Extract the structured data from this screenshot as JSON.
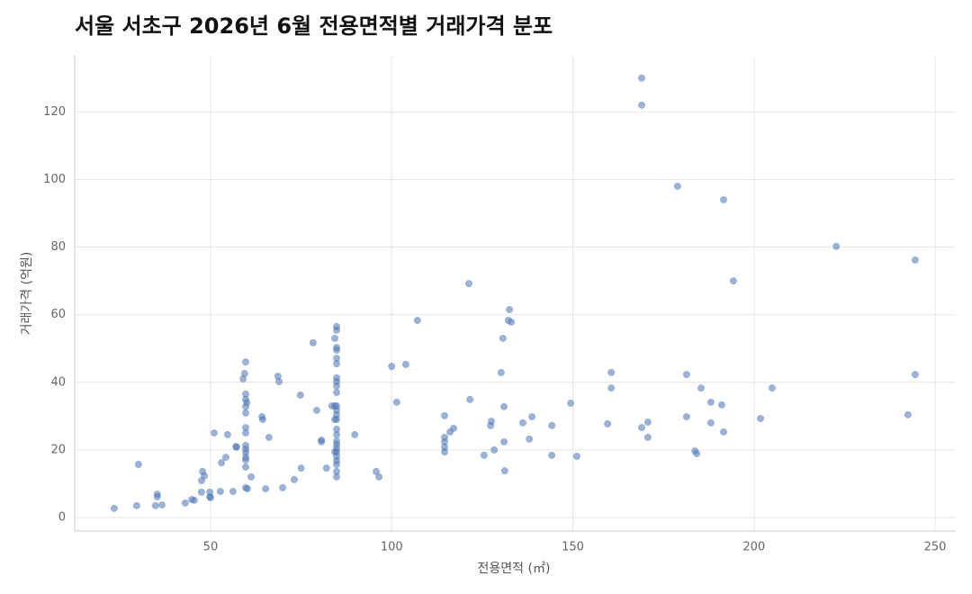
{
  "chart_data": {
    "type": "scatter",
    "title": "서울 서초구 2026년 6월 전용면적별 거래가격 분포",
    "x_label": "전용면적 (㎡)",
    "y_label": "거래가격 (억원)",
    "color": "#4a72b0",
    "grid": true,
    "xlim": [
      12.5,
      255.7
    ],
    "ylim": [
      -4,
      136.6
    ],
    "xticks": [
      50,
      100,
      150,
      200,
      250
    ],
    "yticks": [
      0,
      20,
      40,
      60,
      80,
      100,
      120
    ],
    "x": [
      23.4,
      29.6,
      30.1,
      35.3,
      35.3,
      34.8,
      36.6,
      43,
      44.8,
      45.5,
      47.5,
      47.5,
      47.8,
      48.3,
      49.8,
      49.8,
      50,
      51,
      52.7,
      53,
      54.2,
      54.7,
      56.2,
      57,
      57.2,
      59,
      59.4,
      59.7,
      59.7,
      59.7,
      60,
      59.7,
      59.7,
      59.7,
      59.7,
      59.7,
      59.7,
      59.7,
      59.7,
      59.7,
      59.7,
      59.7,
      60.2,
      61.2,
      64.2,
      64.4,
      65.2,
      66.1,
      68.6,
      68.9,
      69.9,
      73.1,
      75,
      74.8,
      78.3,
      79.3,
      80.6,
      80.6,
      82,
      83.5,
      84.3,
      84.8,
      84.8,
      84.8,
      84.8,
      84.8,
      84.8,
      84.8,
      84.8,
      84.8,
      84.8,
      84.8,
      84.8,
      84.8,
      84.8,
      84.8,
      84.8,
      84.8,
      84.8,
      84.8,
      84.8,
      84.8,
      84.8,
      84.8,
      84.8,
      84.8,
      84.3,
      84.3,
      84.3,
      89.8,
      95.7,
      96.5,
      100,
      101.4,
      103.9,
      107.1,
      114.6,
      114.6,
      114.6,
      114.6,
      114.6,
      116.1,
      117.1,
      121.3,
      121.6,
      125.5,
      127.3,
      127.5,
      128.3,
      130.2,
      130.7,
      131,
      131,
      131.2,
      132.5,
      132.2,
      133,
      136.2,
      138,
      138.7,
      144.2,
      144.2,
      149.4,
      151.1,
      159.6,
      160.6,
      160.6,
      169,
      169,
      169,
      170.7,
      170.7,
      178.9,
      181.4,
      181.4,
      183.7,
      184.2,
      185.4,
      188.1,
      188.1,
      191.1,
      191.6,
      191.6,
      194.3,
      201.8,
      205,
      222.7,
      242.5,
      244.5,
      244.5
    ],
    "values": [
      2.7,
      3.5,
      15.7,
      6.9,
      6.1,
      3.5,
      3.7,
      4.3,
      5.3,
      5.1,
      7.5,
      10.9,
      13.6,
      12.3,
      6.1,
      7.5,
      5.9,
      25,
      7.7,
      16.2,
      17.8,
      24.5,
      7.7,
      21,
      20.8,
      41,
      42.6,
      46,
      36.5,
      34.9,
      34,
      32.8,
      30.9,
      26.6,
      25,
      21.3,
      20.2,
      19.2,
      17.8,
      17,
      14.9,
      8.8,
      8.5,
      12,
      29.8,
      29,
      8.5,
      23.7,
      41.8,
      40.2,
      8.8,
      11.2,
      14.6,
      36.2,
      51.7,
      31.7,
      22.9,
      22.4,
      14.6,
      33,
      53,
      55.4,
      56.5,
      50.3,
      49.5,
      47.1,
      45.5,
      41.3,
      40.2,
      38.9,
      37,
      33,
      31.7,
      30.4,
      29,
      26.1,
      24.5,
      22.6,
      21.6,
      20.5,
      19.4,
      18.1,
      16.8,
      15.7,
      13.6,
      12,
      33,
      29,
      19.4,
      24.5,
      13.6,
      12,
      44.7,
      34.1,
      45.3,
      58.3,
      30.1,
      23.7,
      22.4,
      20.8,
      19.4,
      25.3,
      26.4,
      69.2,
      34.9,
      18.4,
      27.2,
      28.5,
      20,
      42.9,
      53,
      22.4,
      32.8,
      13.8,
      61.5,
      58.3,
      57.8,
      28,
      23.2,
      29.8,
      27.2,
      18.4,
      33.8,
      18.1,
      27.7,
      42.9,
      38.3,
      130,
      122,
      26.6,
      28.2,
      23.7,
      98,
      42.3,
      29.8,
      19.7,
      18.9,
      38.3,
      34.1,
      28,
      33.3,
      94,
      25.3,
      70,
      29.3,
      38.3,
      80.2,
      30.4,
      76.2,
      42.3
    ]
  }
}
